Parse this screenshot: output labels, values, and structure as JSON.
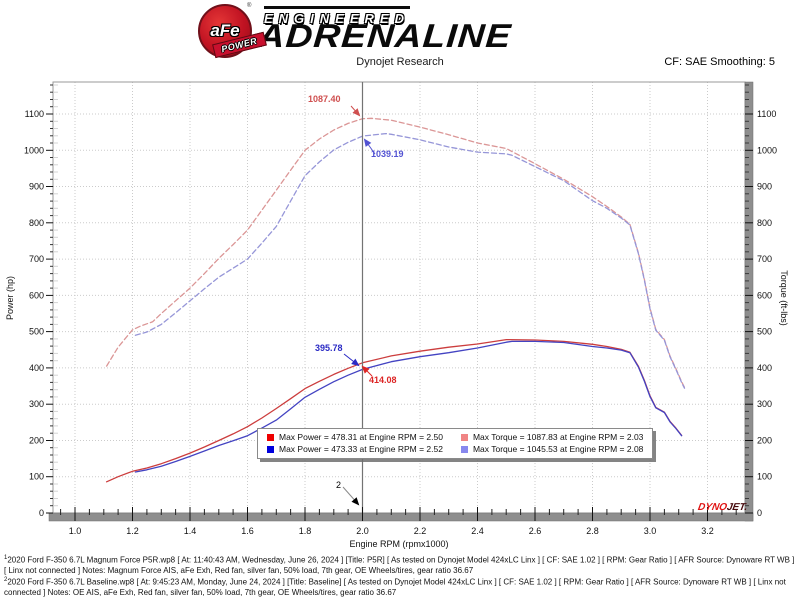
{
  "header": {
    "afe": "aFe",
    "registered": "®",
    "power_banner": "POWER",
    "engineered": "ENGINEERED",
    "adrenaline": "ADRENALINE",
    "subtitle": "Dynojet Research",
    "smoothing": "CF: SAE Smoothing: 5"
  },
  "chart_data": {
    "type": "line",
    "title": "",
    "xlabel": "Engine RPM (rpmx1000)",
    "ylabel_left": "Power (hp)",
    "ylabel_right": "Torque (ft-lbs)",
    "xlim": [
      0.92,
      3.33
    ],
    "ylim": [
      0,
      1188
    ],
    "x_ticks": [
      1.0,
      1.2,
      1.4,
      1.6,
      1.8,
      2.0,
      2.2,
      2.4,
      2.6,
      2.8,
      3.0,
      3.2
    ],
    "y_ticks": [
      0,
      100,
      200,
      300,
      400,
      500,
      600,
      700,
      800,
      900,
      1000,
      1100
    ],
    "grid": true,
    "cursor_rpm": 2.0,
    "series": [
      {
        "name": "magnum-force-torque",
        "unit": "ft-lbs",
        "color": "#db9696",
        "dash": true,
        "points": [
          [
            1.11,
            405
          ],
          [
            1.15,
            457
          ],
          [
            1.2,
            505
          ],
          [
            1.23,
            516
          ],
          [
            1.27,
            527
          ],
          [
            1.3,
            550
          ],
          [
            1.35,
            585
          ],
          [
            1.4,
            620
          ],
          [
            1.45,
            660
          ],
          [
            1.5,
            702
          ],
          [
            1.55,
            740
          ],
          [
            1.6,
            780
          ],
          [
            1.65,
            835
          ],
          [
            1.7,
            890
          ],
          [
            1.75,
            945
          ],
          [
            1.8,
            1000
          ],
          [
            1.85,
            1031
          ],
          [
            1.9,
            1056
          ],
          [
            1.95,
            1074
          ],
          [
            2.0,
            1087
          ],
          [
            2.03,
            1088
          ],
          [
            2.1,
            1083
          ],
          [
            2.2,
            1064
          ],
          [
            2.3,
            1043
          ],
          [
            2.4,
            1020
          ],
          [
            2.5,
            1005
          ],
          [
            2.6,
            963
          ],
          [
            2.7,
            920
          ],
          [
            2.8,
            872
          ],
          [
            2.85,
            845
          ],
          [
            2.9,
            816
          ],
          [
            2.93,
            796
          ],
          [
            2.96,
            716
          ],
          [
            2.98,
            645
          ],
          [
            3.0,
            565
          ],
          [
            3.02,
            506
          ],
          [
            3.05,
            478
          ],
          [
            3.07,
            432
          ],
          [
            3.09,
            398
          ],
          [
            3.11,
            362
          ],
          [
            3.12,
            346
          ]
        ]
      },
      {
        "name": "baseline-torque",
        "unit": "ft-lbs",
        "color": "#9696d8",
        "dash": true,
        "points": [
          [
            1.21,
            490
          ],
          [
            1.25,
            499
          ],
          [
            1.3,
            520
          ],
          [
            1.35,
            552
          ],
          [
            1.4,
            585
          ],
          [
            1.45,
            618
          ],
          [
            1.5,
            650
          ],
          [
            1.55,
            675
          ],
          [
            1.6,
            700
          ],
          [
            1.65,
            744
          ],
          [
            1.7,
            790
          ],
          [
            1.75,
            860
          ],
          [
            1.8,
            930
          ],
          [
            1.85,
            968
          ],
          [
            1.9,
            1001
          ],
          [
            1.95,
            1022
          ],
          [
            2.0,
            1039
          ],
          [
            2.08,
            1046
          ],
          [
            2.1,
            1044
          ],
          [
            2.2,
            1029
          ],
          [
            2.3,
            1009
          ],
          [
            2.4,
            995
          ],
          [
            2.5,
            990
          ],
          [
            2.52,
            986
          ],
          [
            2.6,
            955
          ],
          [
            2.7,
            916
          ],
          [
            2.8,
            861
          ],
          [
            2.85,
            840
          ],
          [
            2.9,
            813
          ],
          [
            2.93,
            794
          ],
          [
            2.96,
            714
          ],
          [
            2.98,
            643
          ],
          [
            3.0,
            563
          ],
          [
            3.02,
            504
          ],
          [
            3.05,
            476
          ],
          [
            3.07,
            430
          ],
          [
            3.09,
            396
          ],
          [
            3.11,
            360
          ],
          [
            3.12,
            344
          ]
        ]
      },
      {
        "name": "magnum-force-power",
        "unit": "hp",
        "color": "#cc3d3d",
        "dash": false,
        "points": [
          [
            1.11,
            86
          ],
          [
            1.15,
            100
          ],
          [
            1.2,
            115
          ],
          [
            1.25,
            124
          ],
          [
            1.3,
            136
          ],
          [
            1.35,
            150
          ],
          [
            1.4,
            165
          ],
          [
            1.45,
            182
          ],
          [
            1.5,
            200
          ],
          [
            1.55,
            218
          ],
          [
            1.6,
            238
          ],
          [
            1.65,
            262
          ],
          [
            1.7,
            288
          ],
          [
            1.75,
            315
          ],
          [
            1.8,
            343
          ],
          [
            1.85,
            363
          ],
          [
            1.9,
            382
          ],
          [
            1.95,
            399
          ],
          [
            2.0,
            414
          ],
          [
            2.1,
            433
          ],
          [
            2.2,
            446
          ],
          [
            2.3,
            457
          ],
          [
            2.4,
            466
          ],
          [
            2.5,
            478
          ],
          [
            2.6,
            477
          ],
          [
            2.7,
            473
          ],
          [
            2.8,
            465
          ],
          [
            2.85,
            459
          ],
          [
            2.9,
            451
          ],
          [
            2.93,
            443
          ],
          [
            2.96,
            404
          ],
          [
            2.98,
            366
          ],
          [
            3.0,
            323
          ],
          [
            3.02,
            291
          ],
          [
            3.05,
            278
          ],
          [
            3.07,
            252
          ],
          [
            3.09,
            234
          ],
          [
            3.11,
            214
          ]
        ]
      },
      {
        "name": "baseline-power",
        "unit": "hp",
        "color": "#4343c2",
        "dash": false,
        "points": [
          [
            1.21,
            113
          ],
          [
            1.25,
            119
          ],
          [
            1.3,
            129
          ],
          [
            1.35,
            142
          ],
          [
            1.4,
            156
          ],
          [
            1.45,
            171
          ],
          [
            1.5,
            186
          ],
          [
            1.55,
            199
          ],
          [
            1.6,
            213
          ],
          [
            1.65,
            234
          ],
          [
            1.7,
            256
          ],
          [
            1.75,
            287
          ],
          [
            1.8,
            319
          ],
          [
            1.85,
            341
          ],
          [
            1.9,
            362
          ],
          [
            1.95,
            380
          ],
          [
            2.0,
            396
          ],
          [
            2.1,
            417
          ],
          [
            2.2,
            431
          ],
          [
            2.3,
            442
          ],
          [
            2.4,
            455
          ],
          [
            2.5,
            471
          ],
          [
            2.52,
            473
          ],
          [
            2.6,
            473
          ],
          [
            2.7,
            470
          ],
          [
            2.8,
            459
          ],
          [
            2.85,
            455
          ],
          [
            2.9,
            449
          ],
          [
            2.93,
            442
          ],
          [
            2.96,
            402
          ],
          [
            2.98,
            364
          ],
          [
            3.0,
            321
          ],
          [
            3.02,
            290
          ],
          [
            3.05,
            277
          ],
          [
            3.07,
            251
          ],
          [
            3.09,
            233
          ],
          [
            3.11,
            213
          ]
        ]
      }
    ],
    "annotations": [
      {
        "text": "1087.40",
        "color": "#cf4f4f"
      },
      {
        "text": "1039.19",
        "color": "#5252d2"
      },
      {
        "text": "395.78",
        "color": "#2a2ac4"
      },
      {
        "text": "414.08",
        "color": "#dd2525"
      },
      {
        "text": "2",
        "color": "#000000"
      }
    ],
    "legend": {
      "items": [
        {
          "color": "#ee0000",
          "label": "Max Power = 478.31 at Engine RPM = 2.50"
        },
        {
          "color": "#f08484",
          "label": "Max Torque = 1087.83 at Engine RPM = 2.03"
        },
        {
          "color": "#0000dd",
          "label": "Max Power = 473.33 at Engine RPM = 2.52"
        },
        {
          "color": "#8888ee",
          "label": "Max Torque = 1045.53 at Engine RPM = 2.08"
        }
      ]
    },
    "watermark": {
      "part1": "DYNO",
      "part2": "JET."
    }
  },
  "footer": {
    "run1": {
      "marker": "1",
      "text": "2020 Ford F-350 6.7L  Magnum Force P5R.wp8 [ At: 11:40:43 AM, Wednesday, June 26, 2024 ] [Title: P5R]  [ As tested on Dynojet Model 424xLC Linx ] [ CF: SAE 1.02 ] [ RPM: Gear Ratio ] [ AFR Source: Dynoware RT WB ] [ Linx not connected ] Notes: Magnum Force AIS, aFe Exh,  Red fan, silver fan, 50% load, 7th gear, OE Wheels/tires, gear ratio 36.67"
    },
    "run2": {
      "marker": "2",
      "text": "2020 Ford F-350 6.7L Baseline.wp8 [ At: 9:45:23 AM, Monday, June 24, 2024 ] [Title: Baseline]  [ As tested on Dynojet Model 424xLC Linx ] [ CF: SAE 1.02 ] [ RPM: Gear Ratio ] [ AFR Source: Dynoware RT WB ] [ Linx not connected ] Notes: OE AIS, aFe Exh,  Red fan, silver fan, 50% load, 7th gear, OE Wheels/tires, gear ratio 36.67"
    }
  }
}
